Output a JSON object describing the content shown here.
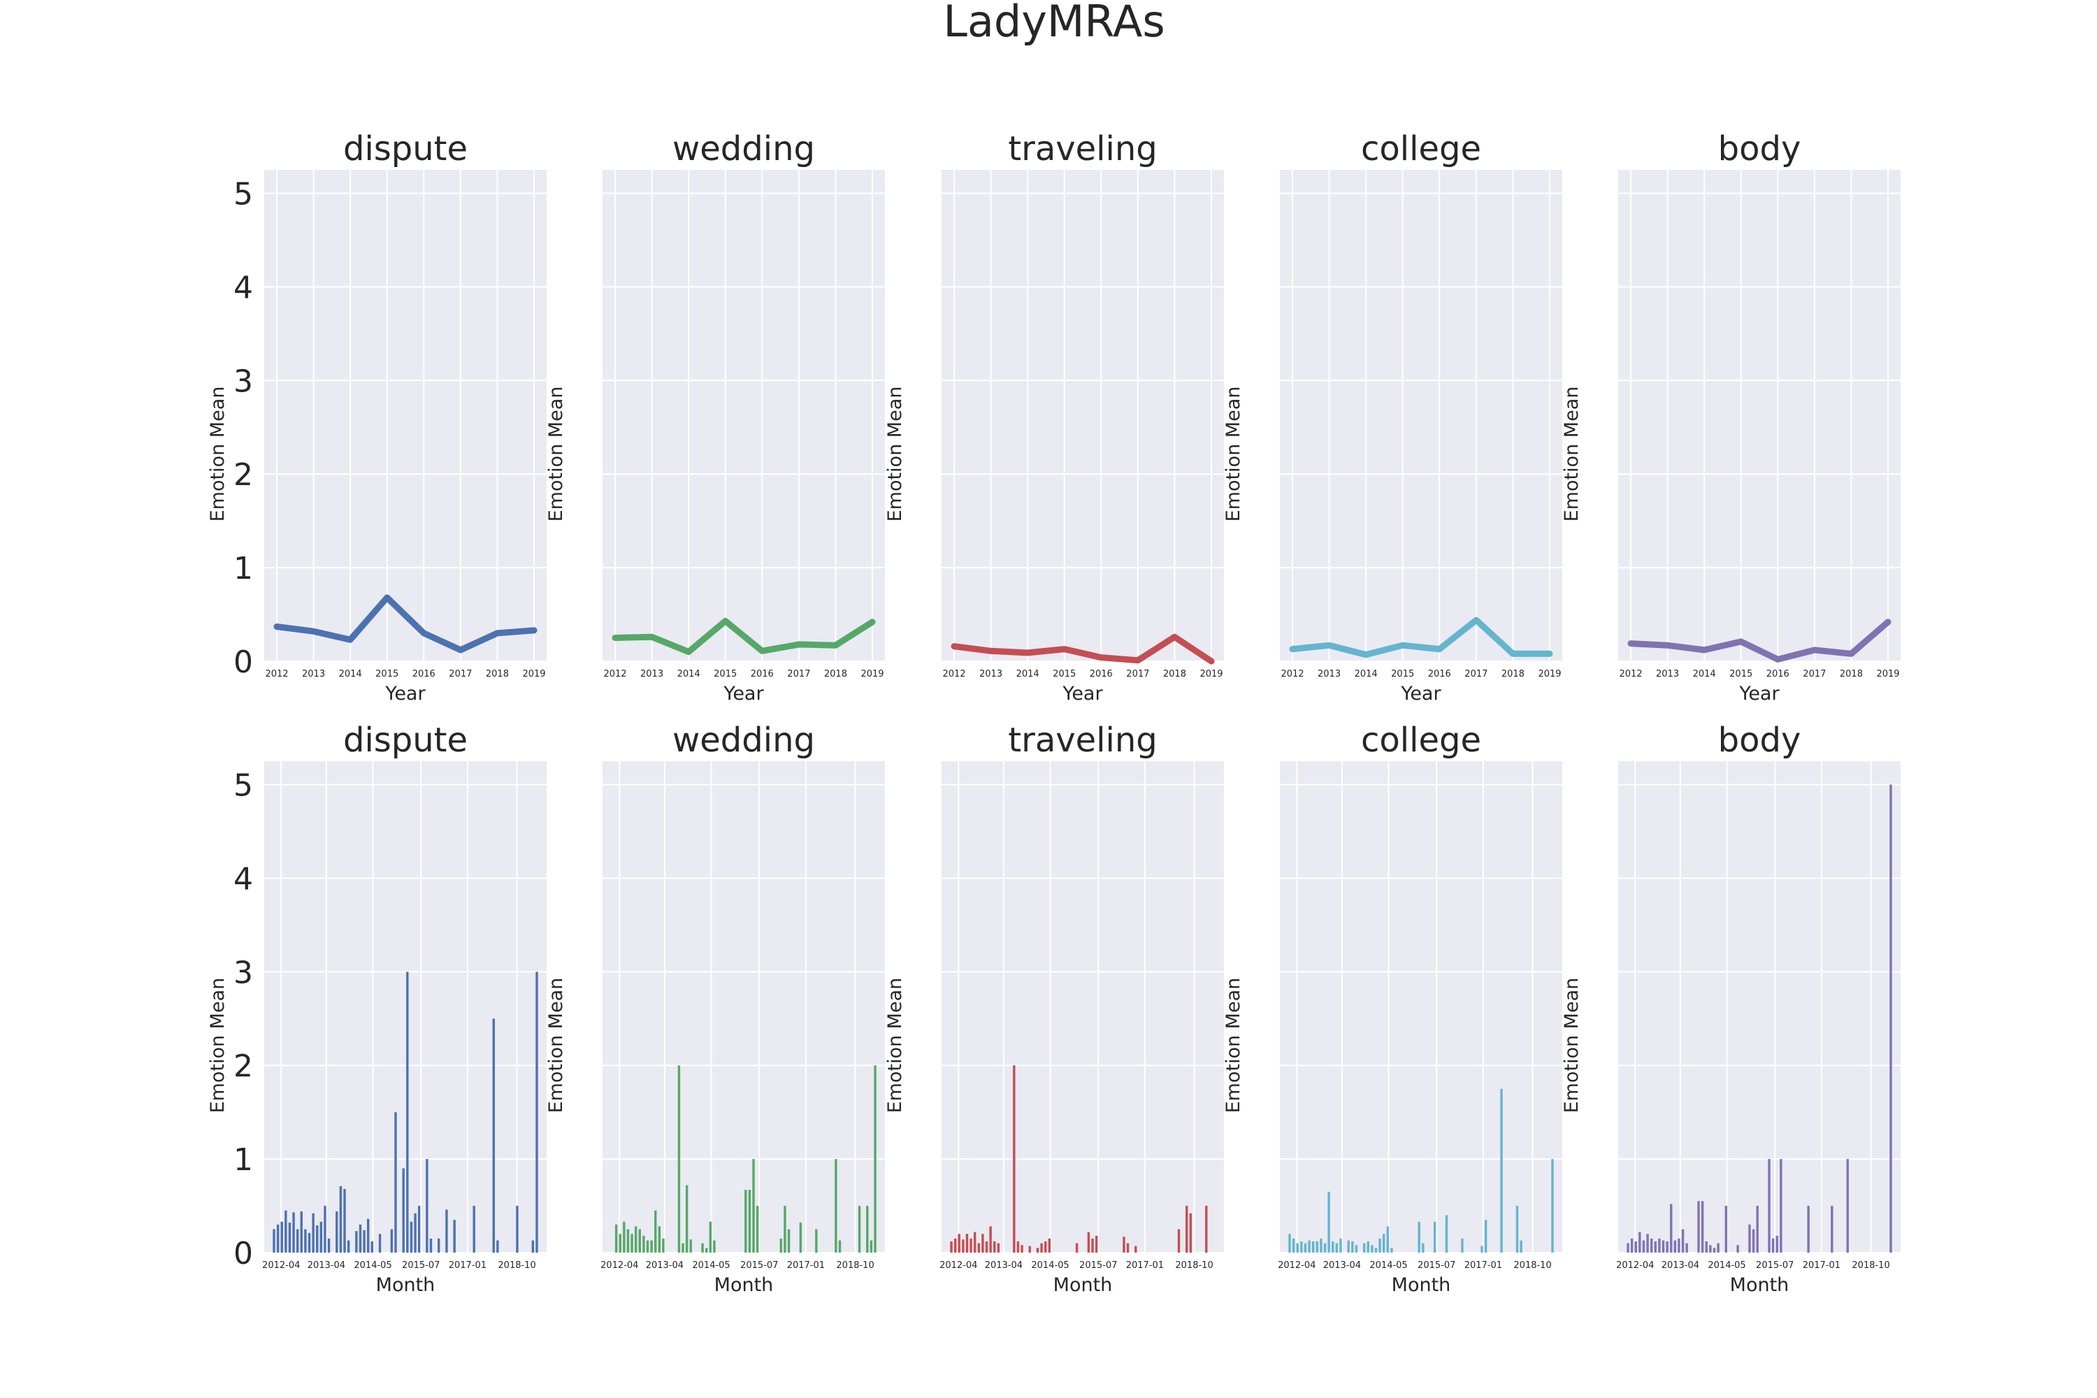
{
  "figure_title": "LadyMRAs",
  "colors": {
    "panel_bg": "#EAEAF2",
    "grid": "#ffffff",
    "text": "#262626",
    "series": [
      "#4C72B0",
      "#55A868",
      "#C44E52",
      "#64B5CD",
      "#8172B2"
    ]
  },
  "chart_data": [
    {
      "type": "line",
      "title": "dispute",
      "xlabel": "Year",
      "ylabel": "Emotion Mean",
      "ylim": [
        0,
        5.25
      ],
      "grid": true,
      "x": [
        "2012",
        "2013",
        "2014",
        "2015",
        "2016",
        "2017",
        "2018",
        "2019"
      ],
      "values": [
        0.37,
        0.32,
        0.23,
        0.68,
        0.3,
        0.12,
        0.3,
        0.33
      ]
    },
    {
      "type": "line",
      "title": "wedding",
      "xlabel": "Year",
      "ylabel": "Emotion Mean",
      "ylim": [
        0,
        5.25
      ],
      "grid": true,
      "x": [
        "2012",
        "2013",
        "2014",
        "2015",
        "2016",
        "2017",
        "2018",
        "2019"
      ],
      "values": [
        0.25,
        0.26,
        0.1,
        0.43,
        0.11,
        0.18,
        0.17,
        0.42
      ]
    },
    {
      "type": "line",
      "title": "traveling",
      "xlabel": "Year",
      "ylabel": "Emotion Mean",
      "ylim": [
        0,
        5.25
      ],
      "grid": true,
      "x": [
        "2012",
        "2013",
        "2014",
        "2015",
        "2016",
        "2017",
        "2018",
        "2019"
      ],
      "values": [
        0.16,
        0.11,
        0.09,
        0.13,
        0.04,
        0.01,
        0.26,
        0.0
      ]
    },
    {
      "type": "line",
      "title": "college",
      "xlabel": "Year",
      "ylabel": "Emotion Mean",
      "ylim": [
        0,
        5.25
      ],
      "grid": true,
      "x": [
        "2012",
        "2013",
        "2014",
        "2015",
        "2016",
        "2017",
        "2018",
        "2019"
      ],
      "values": [
        0.13,
        0.17,
        0.07,
        0.17,
        0.13,
        0.44,
        0.08,
        0.08
      ]
    },
    {
      "type": "line",
      "title": "body",
      "xlabel": "Year",
      "ylabel": "Emotion Mean",
      "ylim": [
        0,
        5.25
      ],
      "grid": true,
      "x": [
        "2012",
        "2013",
        "2014",
        "2015",
        "2016",
        "2017",
        "2018",
        "2019"
      ],
      "values": [
        0.19,
        0.17,
        0.12,
        0.21,
        0.02,
        0.12,
        0.08,
        0.42
      ]
    },
    {
      "type": "bar",
      "title": "dispute",
      "xlabel": "Month",
      "ylabel": "Emotion Mean",
      "ylim": [
        0,
        5.25
      ],
      "grid": true,
      "xticks": [
        "2012-04",
        "2013-04",
        "2014-05",
        "2015-07",
        "2017-01",
        "2018-10"
      ],
      "values": [
        0.25,
        0.3,
        0.33,
        0.45,
        0.32,
        0.43,
        0.25,
        0.44,
        0.25,
        0.21,
        0.42,
        0.29,
        0.33,
        0.5,
        0.15,
        0,
        0.44,
        0.71,
        0.68,
        0.13,
        0,
        0.23,
        0.3,
        0.24,
        0.36,
        0.12,
        0,
        0.2,
        0,
        0,
        0.25,
        1.5,
        0,
        0.9,
        3.0,
        0.33,
        0.42,
        0.5,
        0,
        1.0,
        0.15,
        0,
        0.15,
        0,
        0.46,
        0,
        0.35,
        0,
        0,
        0,
        0,
        0.5,
        0,
        0,
        0,
        0,
        2.5,
        0.13,
        0,
        0,
        0,
        0,
        0.5,
        0,
        0,
        0,
        0.13,
        3.0
      ]
    },
    {
      "type": "bar",
      "title": "wedding",
      "xlabel": "Month",
      "ylabel": "Emotion Mean",
      "ylim": [
        0,
        5.25
      ],
      "grid": true,
      "xticks": [
        "2012-04",
        "2013-04",
        "2014-05",
        "2015-07",
        "2017-01",
        "2018-10"
      ],
      "values": [
        0,
        0.3,
        0.2,
        0.33,
        0.25,
        0.2,
        0.28,
        0.25,
        0.18,
        0.13,
        0.13,
        0.45,
        0.28,
        0.15,
        0,
        0,
        0,
        2.0,
        0.1,
        0.72,
        0.14,
        0,
        0,
        0.1,
        0.05,
        0.33,
        0.13,
        0,
        0,
        0,
        0,
        0,
        0,
        0,
        0.67,
        0.67,
        1.0,
        0.5,
        0,
        0,
        0,
        0,
        0,
        0.15,
        0.5,
        0.25,
        0,
        0,
        0.32,
        0,
        0,
        0,
        0.25,
        0,
        0,
        0,
        0,
        1.0,
        0.13,
        0,
        0,
        0,
        0,
        0.5,
        0,
        0.5,
        0.13,
        2.0
      ]
    },
    {
      "type": "bar",
      "title": "traveling",
      "xlabel": "Month",
      "ylabel": "Emotion Mean",
      "ylim": [
        0,
        5.25
      ],
      "grid": true,
      "xticks": [
        "2012-04",
        "2013-04",
        "2014-05",
        "2015-07",
        "2017-01",
        "2018-10"
      ],
      "values": [
        0.12,
        0.15,
        0.2,
        0.14,
        0.2,
        0.15,
        0.22,
        0.1,
        0.2,
        0.12,
        0.28,
        0.12,
        0.1,
        0,
        0,
        0,
        2.0,
        0.12,
        0.08,
        0,
        0.07,
        0,
        0.05,
        0.1,
        0.12,
        0.15,
        0,
        0,
        0,
        0,
        0,
        0,
        0.1,
        0,
        0,
        0.22,
        0.15,
        0.18,
        0,
        0,
        0,
        0,
        0,
        0,
        0.17,
        0.1,
        0,
        0.07,
        0,
        0,
        0,
        0,
        0,
        0,
        0,
        0,
        0,
        0,
        0.25,
        0,
        0.5,
        0.42,
        0,
        0,
        0,
        0.5,
        0,
        0
      ]
    },
    {
      "type": "bar",
      "title": "college",
      "xlabel": "Month",
      "ylabel": "Emotion Mean",
      "ylim": [
        0,
        5.25
      ],
      "grid": true,
      "xticks": [
        "2012-04",
        "2013-04",
        "2014-05",
        "2015-07",
        "2017-01",
        "2018-10"
      ],
      "values": [
        0.2,
        0.15,
        0.1,
        0.12,
        0.1,
        0.13,
        0.12,
        0.12,
        0.15,
        0.1,
        0.65,
        0.12,
        0.1,
        0.15,
        0,
        0.13,
        0.12,
        0.08,
        0,
        0.1,
        0.12,
        0.08,
        0.05,
        0.15,
        0.2,
        0.28,
        0.05,
        0,
        0,
        0,
        0,
        0,
        0,
        0.33,
        0.1,
        0,
        0,
        0.33,
        0,
        0,
        0.4,
        0,
        0,
        0,
        0.15,
        0,
        0,
        0,
        0,
        0.07,
        0.35,
        0,
        0,
        0,
        1.75,
        0,
        0,
        0,
        0.5,
        0.13,
        0,
        0,
        0,
        0,
        0,
        0,
        0,
        1.0
      ]
    },
    {
      "type": "bar",
      "title": "body",
      "xlabel": "Month",
      "ylabel": "Emotion Mean",
      "ylim": [
        0,
        5.25
      ],
      "grid": true,
      "xticks": [
        "2012-04",
        "2013-04",
        "2014-05",
        "2015-07",
        "2017-01",
        "2018-10"
      ],
      "values": [
        0.1,
        0.15,
        0.12,
        0.22,
        0.13,
        0.2,
        0.15,
        0.12,
        0.15,
        0.13,
        0.12,
        0.52,
        0.13,
        0.15,
        0.25,
        0.1,
        0,
        0,
        0.55,
        0.55,
        0.12,
        0.08,
        0.05,
        0.1,
        0,
        0.5,
        0,
        0,
        0.08,
        0,
        0,
        0.3,
        0.25,
        0.5,
        0,
        0,
        1.0,
        0.15,
        0.18,
        1.0,
        0,
        0,
        0,
        0,
        0,
        0,
        0.5,
        0,
        0,
        0,
        0,
        0,
        0.5,
        0,
        0,
        0,
        1.0,
        0,
        0,
        0,
        0,
        0,
        0,
        0,
        0,
        0,
        0,
        5.0
      ]
    }
  ]
}
